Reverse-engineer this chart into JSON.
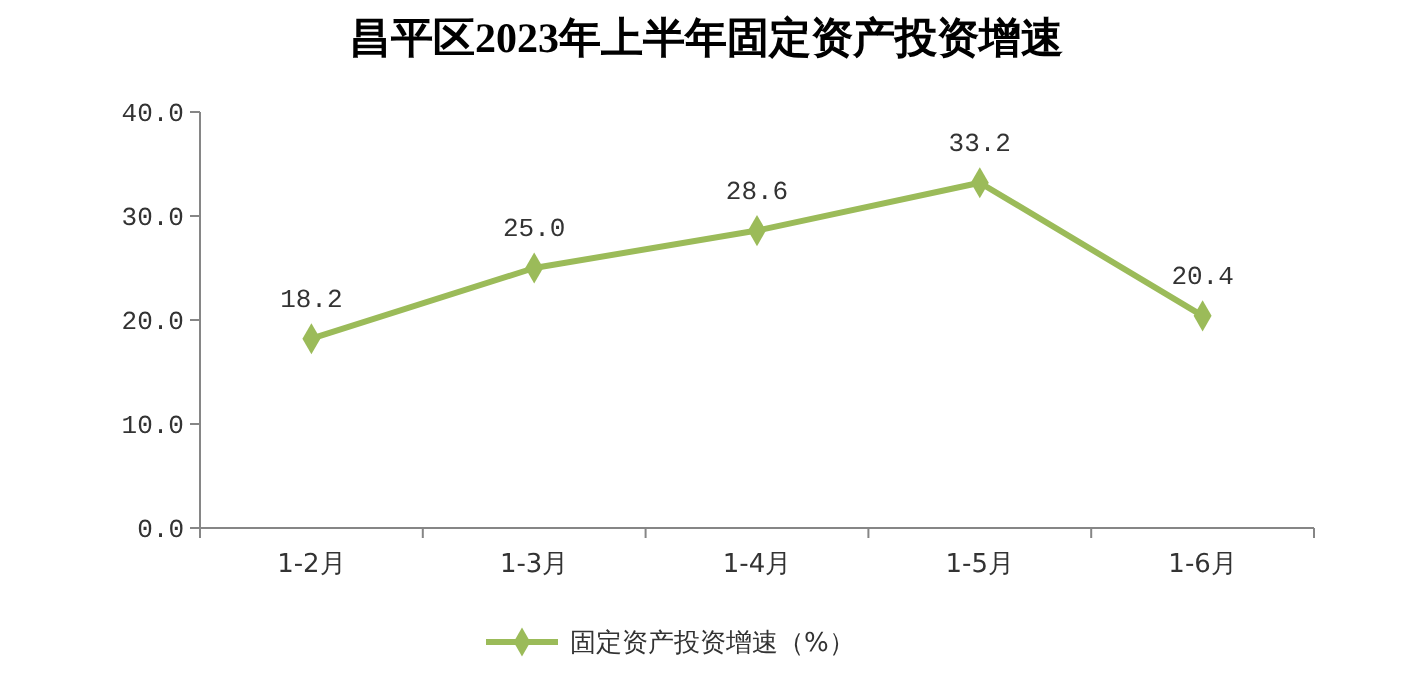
{
  "chart_data": {
    "type": "line",
    "title": "昌平区2023年上半年固定资产投资增速",
    "categories": [
      "1-2月",
      "1-3月",
      "1-4月",
      "1-5月",
      "1-6月"
    ],
    "series": [
      {
        "name": "固定资产投资增速（%）",
        "color": "#9bbb59",
        "values": [
          18.2,
          25.0,
          28.6,
          33.2,
          20.4
        ],
        "value_labels": [
          "18.2",
          "25.0",
          "28.6",
          "33.2",
          "20.4"
        ]
      }
    ],
    "ylim": [
      0,
      40
    ],
    "yticks": [
      {
        "value": 0,
        "label": "0.0"
      },
      {
        "value": 10,
        "label": "10.0"
      },
      {
        "value": 20,
        "label": "20.0"
      },
      {
        "value": 30,
        "label": "30.0"
      },
      {
        "value": 40,
        "label": "40.0"
      }
    ],
    "grid": false,
    "legend": "bottom",
    "marker": "diamond",
    "line_style": "solid"
  }
}
